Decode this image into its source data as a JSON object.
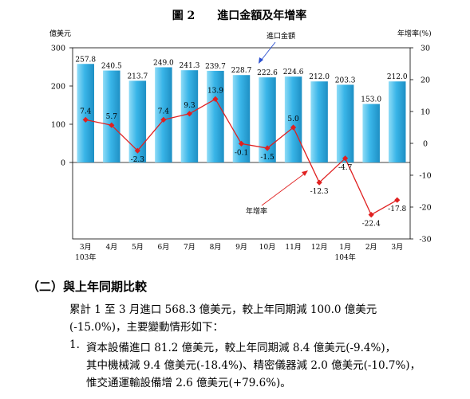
{
  "figure": {
    "title": "圖 2　　進口金額及年增率",
    "left_axis_unit": "億美元",
    "right_axis_unit": "年增率(%)",
    "callout_amount": "進口金額",
    "callout_growth": "年增率"
  },
  "chart_data": {
    "type": "bar+line",
    "categories": [
      "3月",
      "4月",
      "5月",
      "6月",
      "7月",
      "8月",
      "9月",
      "10月",
      "11月",
      "12月",
      "1月",
      "2月",
      "3月"
    ],
    "year_labels": [
      {
        "index": 0,
        "text": "103年"
      },
      {
        "index": 10,
        "text": "104年"
      }
    ],
    "series": [
      {
        "name": "進口金額",
        "axis": "left",
        "kind": "bar",
        "color": "#39b5e8",
        "values": [
          257.8,
          240.5,
          213.7,
          249.0,
          241.3,
          239.7,
          228.7,
          222.6,
          224.6,
          212.0,
          203.3,
          153.0,
          212.0
        ],
        "labels": [
          "257.8",
          "240.5",
          "213.7",
          "249.0",
          "241.3",
          "239.7",
          "228.7",
          "222.6",
          "224.6",
          "212.0",
          "203.3",
          "153.0",
          "212.0"
        ]
      },
      {
        "name": "年增率",
        "axis": "right",
        "kind": "line",
        "color": "#e02020",
        "values": [
          7.4,
          5.7,
          -2.3,
          7.4,
          9.3,
          13.9,
          -0.1,
          -1.5,
          5.0,
          -12.3,
          -4.7,
          -22.4,
          -17.8
        ],
        "labels": [
          "7.4",
          "5.7",
          "-2.3",
          "7.4",
          "9.3",
          "13.9",
          "-0.1",
          "-1.5",
          "5.0",
          "-12.3",
          "-4.7",
          "-22.4",
          "-17.8"
        ]
      }
    ],
    "left_axis": {
      "ticks": [
        "300",
        "200",
        "100",
        "0"
      ],
      "range": [
        -200,
        300
      ]
    },
    "right_axis": {
      "ticks": [
        "30",
        "20",
        "10",
        "0",
        "-10",
        "-20",
        "-30"
      ],
      "range": [
        -30,
        30
      ]
    }
  },
  "section": {
    "heading": "（二）與上年同期比較",
    "summary_line1": "累計 1 至 3 月進口 568.3 億美元，較上年同期減 100.0 億美元",
    "summary_line2": "(-15.0%)，主要變動情形如下：",
    "item1_number": "1.",
    "item1_line1": "資本設備進口 81.2 億美元，較上年同期減 8.4 億美元(-9.4%)，",
    "item1_line2": "其中機械減 9.4 億美元(-18.4%)、精密儀器減 2.0 億美元(-10.7%)，",
    "item1_line3": "惟交通運輸設備增 2.6 億美元(+79.6%)。"
  }
}
